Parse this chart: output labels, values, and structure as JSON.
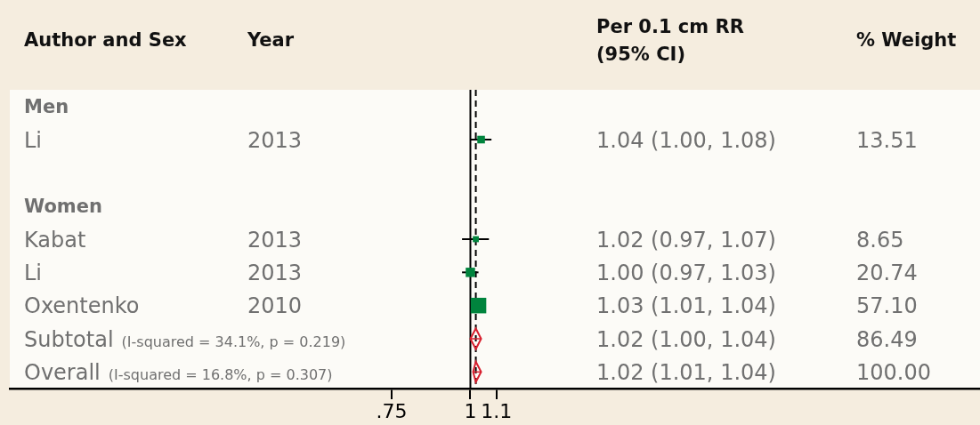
{
  "chart_data": {
    "type": "scatter",
    "orientation": "horizontal",
    "log": "x",
    "ylabel": "Author and Sex",
    "categories": [
      "Men",
      "Li",
      null,
      "Women",
      "Kabat",
      "Li",
      "Oxentenko",
      "Subtotal",
      "Overall"
    ],
    "y2_categories": [
      null,
      "2013",
      null,
      null,
      "2013",
      "2013",
      "2010",
      null,
      null
    ],
    "series": [
      {
        "type": "bubble",
        "marker": "square",
        "color": "#00843d",
        "values": [
          null,
          1.04,
          null,
          null,
          1.02,
          1.0,
          1.03,
          null,
          null
        ],
        "errors": [
          null,
          [
            1.0,
            1.08
          ],
          null,
          null,
          [
            0.97,
            1.07
          ],
          [
            0.97,
            1.03
          ],
          null,
          null,
          null
        ],
        "sizes": [
          null,
          0.24,
          null,
          null,
          0.15,
          0.36,
          1,
          null,
          null
        ]
      },
      {
        "marker": "diamond",
        "color": "#d8202f",
        "values": [
          null,
          null,
          null,
          null,
          null,
          null,
          null,
          1.02,
          1.02
        ],
        "errors": [
          null,
          null,
          null,
          null,
          null,
          null,
          null,
          [
            1.0,
            1.04
          ],
          [
            1.01,
            1.04
          ]
        ]
      }
    ],
    "ref_lines": [
      {
        "axis": "x",
        "value": 1,
        "color": "#000000",
        "line_style": "solid"
      },
      {
        "axis": "x",
        "value": 1.02,
        "color": "#000000",
        "line_style": "dashed"
      }
    ],
    "xlim": [
      0.186,
      6.43
    ],
    "xticks": [
      {
        "value": 0.75,
        "label": ".75"
      },
      1,
      1.1
    ],
    "annotations": [
      "Year",
      "Per 0.1 cm RR (95% CI)",
      "% Weight",
      "1.04 (1.00, 1.08)",
      "13.51",
      "1.02 (0.97, 1.07)",
      "8.65",
      "1.00 (0.97, 1.03)",
      "20.74",
      "1.03 (1.01, 1.04)",
      "57.10",
      "(I-squared = 34.1%, p = 0.219)",
      "1.02 (1.00, 1.04)",
      "86.49",
      "(I-squared = 16.8%, p = 0.307)",
      "1.02 (1.01, 1.04)",
      "100.00"
    ]
  }
}
